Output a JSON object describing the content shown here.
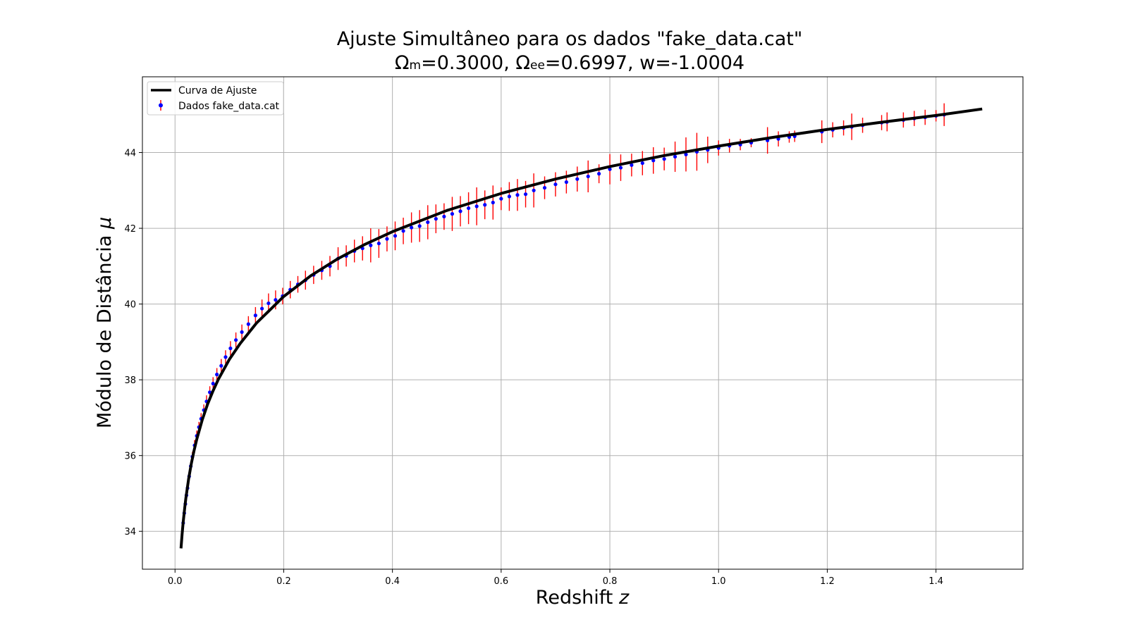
{
  "chart_data": {
    "type": "scatter",
    "title_line1": "Ajuste Simultâneo para os dados \"fake_data.cat\"",
    "title_line2": {
      "omega": "Ω",
      "m_sub": "m",
      "part_a": "=0.3000, ",
      "ee_sub": "ee",
      "part_b": "=0.6997, w=-1.0004"
    },
    "xlabel": "Redshift",
    "xlabel_var": "z",
    "ylabel": "Módulo de Distância",
    "ylabel_var": "μ",
    "xlim": [
      -0.06,
      1.56
    ],
    "ylim": [
      33.0,
      46.0
    ],
    "xticks": [
      {
        "value": 0.0,
        "label": "0.0"
      },
      {
        "value": 0.2,
        "label": "0.2"
      },
      {
        "value": 0.4,
        "label": "0.4"
      },
      {
        "value": 0.6,
        "label": "0.6"
      },
      {
        "value": 0.8,
        "label": "0.8"
      },
      {
        "value": 1.0,
        "label": "1.0"
      },
      {
        "value": 1.2,
        "label": "1.2"
      },
      {
        "value": 1.4,
        "label": "1.4"
      }
    ],
    "yticks": [
      {
        "value": 34,
        "label": "34"
      },
      {
        "value": 36,
        "label": "36"
      },
      {
        "value": 38,
        "label": "38"
      },
      {
        "value": 40,
        "label": "40"
      },
      {
        "value": 42,
        "label": "42"
      },
      {
        "value": 44,
        "label": "44"
      }
    ],
    "grid": true,
    "legend_position": "top-left",
    "colors": {
      "fit_curve": "#000000",
      "data_marker": "#0000ff",
      "error_bar": "#ff0000",
      "grid": "#b0b0b0"
    },
    "series": [
      {
        "name": "Curva de Ajuste",
        "kind": "line",
        "x": [
          0.011,
          0.013,
          0.015,
          0.018,
          0.02,
          0.025,
          0.03,
          0.035,
          0.04,
          0.05,
          0.06,
          0.07,
          0.08,
          0.1,
          0.12,
          0.15,
          0.2,
          0.25,
          0.3,
          0.35,
          0.4,
          0.5,
          0.6,
          0.7,
          0.8,
          0.9,
          1.0,
          1.1,
          1.2,
          1.3,
          1.4,
          1.485
        ],
        "y": [
          33.55,
          33.92,
          34.24,
          34.64,
          34.88,
          35.38,
          35.79,
          36.13,
          36.43,
          36.94,
          37.36,
          37.71,
          38.02,
          38.54,
          38.96,
          39.5,
          40.2,
          40.75,
          41.2,
          41.58,
          41.91,
          42.47,
          42.92,
          43.3,
          43.63,
          43.92,
          44.17,
          44.4,
          44.61,
          44.8,
          44.98,
          45.15
        ]
      },
      {
        "name": "Dados fake_data.cat",
        "kind": "errorbar",
        "x": [
          0.015,
          0.017,
          0.019,
          0.021,
          0.023,
          0.026,
          0.029,
          0.032,
          0.036,
          0.04,
          0.044,
          0.048,
          0.053,
          0.058,
          0.064,
          0.07,
          0.077,
          0.085,
          0.093,
          0.102,
          0.112,
          0.123,
          0.135,
          0.148,
          0.16,
          0.172,
          0.185,
          0.198,
          0.212,
          0.226,
          0.24,
          0.255,
          0.27,
          0.285,
          0.3,
          0.315,
          0.33,
          0.345,
          0.36,
          0.375,
          0.39,
          0.405,
          0.42,
          0.435,
          0.45,
          0.465,
          0.48,
          0.495,
          0.51,
          0.525,
          0.54,
          0.555,
          0.57,
          0.585,
          0.6,
          0.615,
          0.63,
          0.645,
          0.66,
          0.68,
          0.7,
          0.72,
          0.74,
          0.76,
          0.78,
          0.8,
          0.82,
          0.84,
          0.86,
          0.88,
          0.9,
          0.92,
          0.94,
          0.96,
          0.98,
          1.0,
          1.02,
          1.04,
          1.06,
          1.09,
          1.11,
          1.13,
          1.14,
          1.19,
          1.21,
          1.23,
          1.245,
          1.265,
          1.3,
          1.31,
          1.34,
          1.36,
          1.38,
          1.4,
          1.415
        ],
        "y": [
          34.22,
          34.48,
          34.72,
          34.95,
          35.14,
          35.45,
          35.72,
          35.97,
          36.27,
          36.52,
          36.75,
          36.97,
          37.2,
          37.43,
          37.67,
          37.9,
          38.14,
          38.37,
          38.6,
          38.83,
          39.05,
          39.26,
          39.47,
          39.7,
          39.88,
          40.02,
          40.11,
          40.21,
          40.38,
          40.52,
          40.63,
          40.77,
          40.89,
          41.0,
          41.2,
          41.27,
          41.4,
          41.47,
          41.55,
          41.6,
          41.72,
          41.8,
          41.93,
          42.02,
          42.06,
          42.16,
          42.25,
          42.31,
          42.38,
          42.45,
          42.53,
          42.58,
          42.62,
          42.68,
          42.78,
          42.84,
          42.88,
          42.9,
          43.0,
          43.07,
          43.16,
          43.22,
          43.3,
          43.37,
          43.44,
          43.56,
          43.6,
          43.67,
          43.72,
          43.79,
          43.83,
          43.89,
          43.95,
          44.02,
          44.07,
          44.12,
          44.18,
          44.21,
          44.26,
          44.32,
          44.36,
          44.41,
          44.43,
          44.55,
          44.6,
          44.65,
          44.68,
          44.72,
          44.79,
          44.81,
          44.86,
          44.9,
          44.93,
          44.97,
          45.0
        ],
        "yerr": [
          0.12,
          0.12,
          0.12,
          0.12,
          0.12,
          0.13,
          0.13,
          0.13,
          0.14,
          0.14,
          0.14,
          0.15,
          0.15,
          0.16,
          0.16,
          0.17,
          0.17,
          0.18,
          0.18,
          0.19,
          0.2,
          0.2,
          0.21,
          0.22,
          0.24,
          0.26,
          0.25,
          0.22,
          0.23,
          0.22,
          0.25,
          0.24,
          0.25,
          0.27,
          0.3,
          0.28,
          0.3,
          0.32,
          0.45,
          0.38,
          0.33,
          0.38,
          0.35,
          0.4,
          0.42,
          0.45,
          0.38,
          0.35,
          0.45,
          0.4,
          0.42,
          0.5,
          0.38,
          0.45,
          0.3,
          0.38,
          0.42,
          0.35,
          0.45,
          0.3,
          0.32,
          0.3,
          0.33,
          0.42,
          0.25,
          0.4,
          0.35,
          0.3,
          0.32,
          0.35,
          0.3,
          0.4,
          0.45,
          0.5,
          0.35,
          0.2,
          0.18,
          0.15,
          0.12,
          0.35,
          0.2,
          0.15,
          0.15,
          0.3,
          0.2,
          0.2,
          0.35,
          0.2,
          0.2,
          0.25,
          0.2,
          0.2,
          0.2,
          0.15,
          0.3
        ]
      }
    ]
  }
}
